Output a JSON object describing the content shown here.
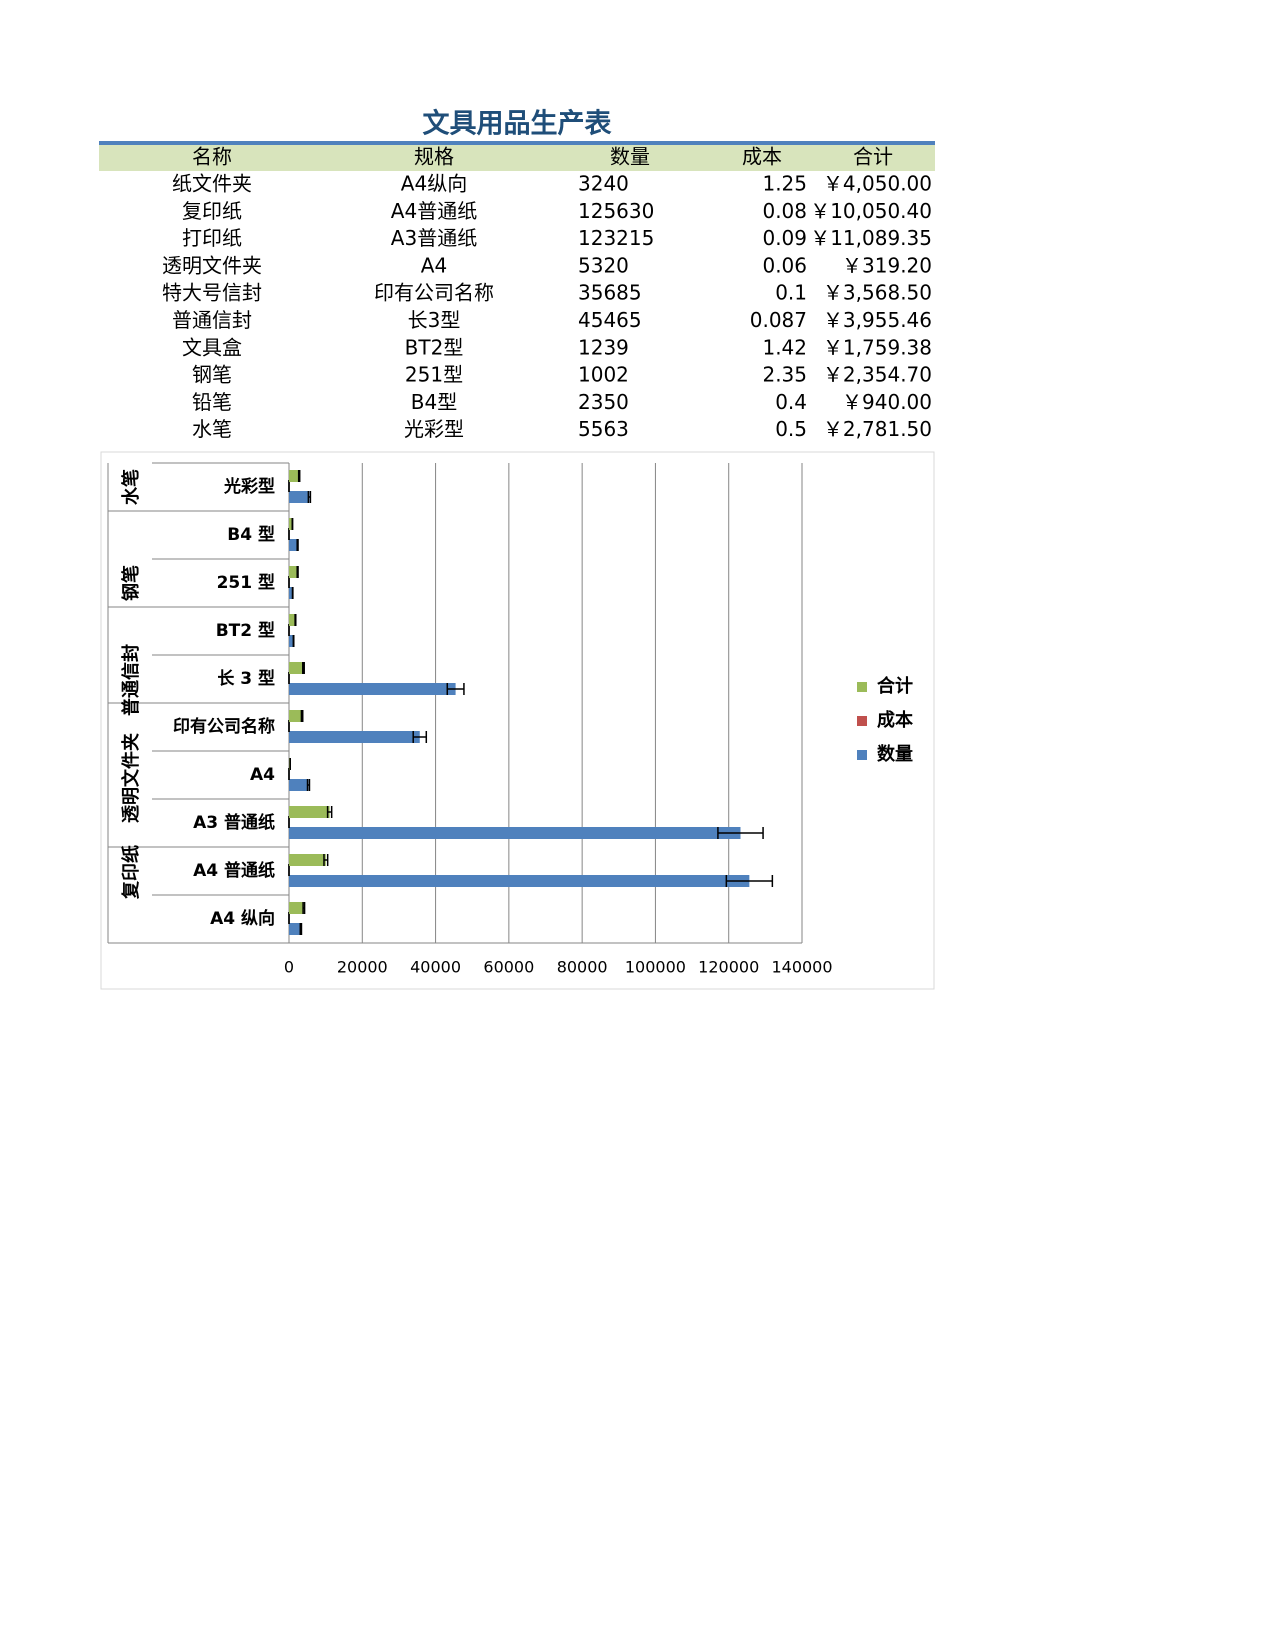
{
  "header": {
    "title": "文具用品生产表"
  },
  "table": {
    "columns": [
      "名称",
      "规格",
      "数量",
      "成本",
      "合计"
    ],
    "rows": [
      [
        "纸文件夹",
        "A4纵向",
        "3240",
        "1.25",
        "￥4,050.00"
      ],
      [
        "复印纸",
        "A4普通纸",
        "125630",
        "0.08",
        "￥10,050.40"
      ],
      [
        "打印纸",
        "A3普通纸",
        "123215",
        "0.09",
        "￥11,089.35"
      ],
      [
        "透明文件夹",
        "A4",
        "5320",
        "0.06",
        "￥319.20"
      ],
      [
        "特大号信封",
        "印有公司名称",
        "35685",
        "0.1",
        "￥3,568.50"
      ],
      [
        "普通信封",
        "长3型",
        "45465",
        "0.087",
        "￥3,955.46"
      ],
      [
        "文具盒",
        "BT2型",
        "1239",
        "1.42",
        "￥1,759.38"
      ],
      [
        "钢笔",
        "251型",
        "1002",
        "2.35",
        "￥2,354.70"
      ],
      [
        "铅笔",
        "B4型",
        "2350",
        "0.4",
        "￥940.00"
      ],
      [
        "水笔",
        "光彩型",
        "5563",
        "0.5",
        "￥2,781.50"
      ]
    ]
  },
  "chart_data": {
    "type": "bar",
    "orientation": "horizontal",
    "categories": [
      "A4 纵向",
      "A4 普通纸",
      "A3 普通纸",
      "A4",
      "印有公司名称",
      "长 3 型",
      "BT2 型",
      "251 型",
      "B4 型",
      "光彩型"
    ],
    "groups": [
      "复印纸",
      "透明文件夹",
      "普通信封",
      "钢笔",
      "水笔"
    ],
    "series": [
      {
        "name": "数量",
        "color": "#4f81bd",
        "values": [
          3240,
          125630,
          123215,
          5320,
          35685,
          45465,
          1239,
          1002,
          2350,
          5563
        ]
      },
      {
        "name": "成本",
        "color": "#c0504d",
        "values": [
          1.25,
          0.08,
          0.09,
          0.06,
          0.1,
          0.087,
          1.42,
          2.35,
          0.4,
          0.5
        ]
      },
      {
        "name": "合计",
        "color": "#9bbb59",
        "values": [
          4050,
          10050.4,
          11089.35,
          319.2,
          3568.5,
          3955.46,
          1759.38,
          2354.7,
          940,
          2781.5
        ]
      }
    ],
    "error_bar_percent": 5,
    "xlim": [
      0,
      140000
    ],
    "xticks": [
      0,
      20000,
      40000,
      60000,
      80000,
      100000,
      120000,
      140000
    ],
    "grid": true,
    "legend": "right"
  }
}
